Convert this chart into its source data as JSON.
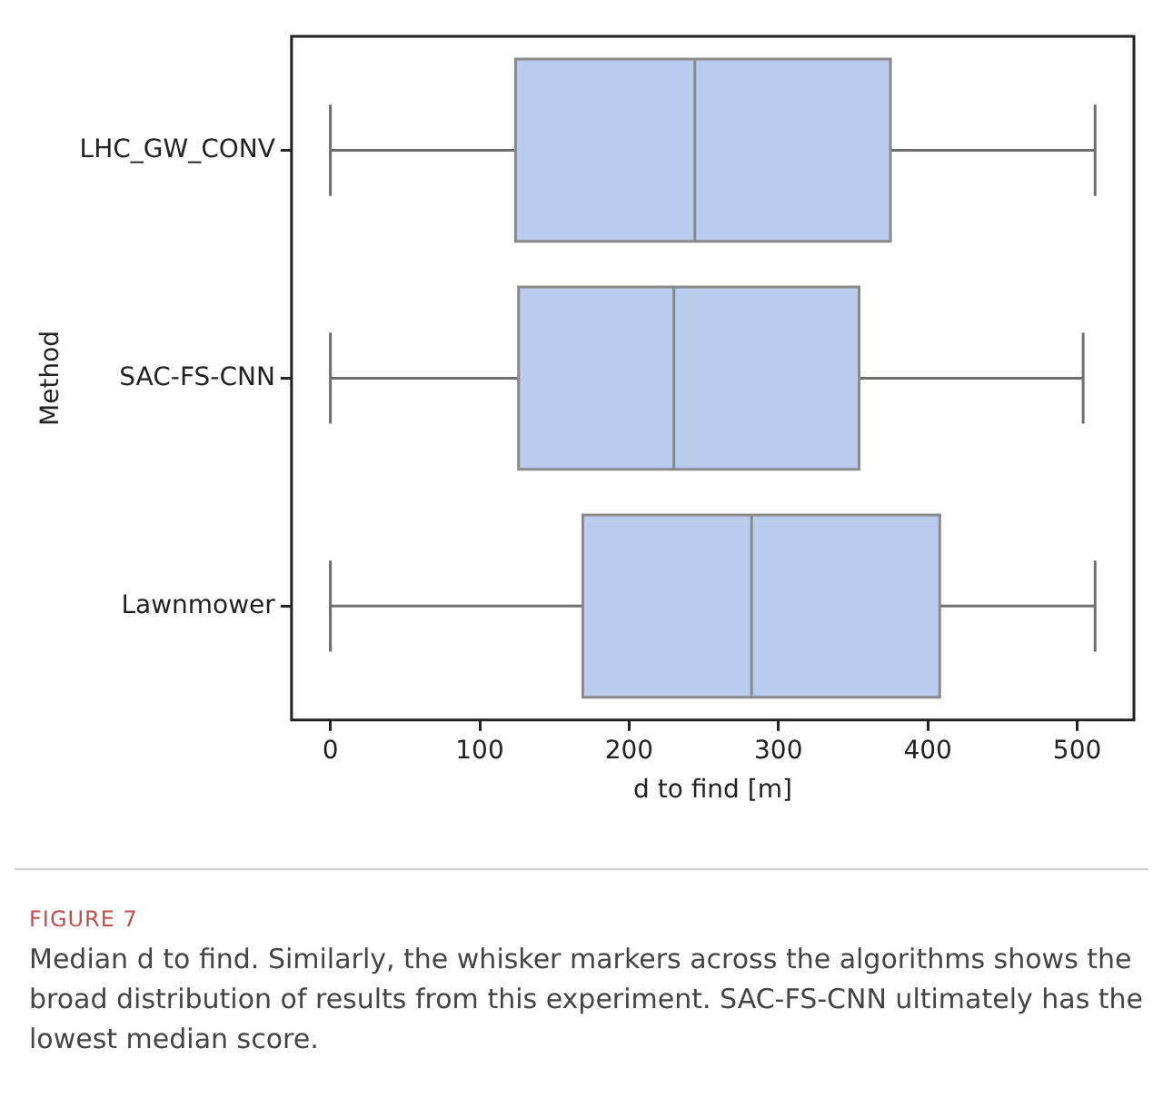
{
  "chart_data": {
    "type": "box",
    "orientation": "horizontal",
    "xlabel": "d to find [m]",
    "ylabel": "Method",
    "categories": [
      "LHC_GW_CONV",
      "SAC-FS-CNN",
      "Lawnmower"
    ],
    "boxes": [
      {
        "low": 0,
        "q1": 124,
        "median": 244,
        "q3": 375,
        "high": 512
      },
      {
        "low": 0,
        "q1": 126,
        "median": 230,
        "q3": 354,
        "high": 504
      },
      {
        "low": 0,
        "q1": 169,
        "median": 282,
        "q3": 408,
        "high": 512
      }
    ],
    "color": "#b9cced",
    "xlim": [
      -26,
      538
    ],
    "xticks": [
      0,
      100,
      200,
      300,
      400,
      500
    ],
    "grid": false,
    "legend": false,
    "annotations": [
      "FIGURE 7",
      "Median d to find. Similarly, the whisker markers across the algorithms shows the broad distribution of results from this experiment. SAC-FS-CNN ultimately has the lowest median score."
    ]
  }
}
